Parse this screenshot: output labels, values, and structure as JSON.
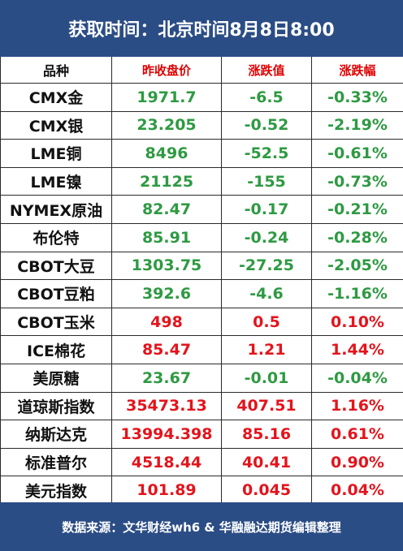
{
  "title": "获取时间：北京时间8月8日8:00",
  "columns": {
    "name": "品种",
    "prev_close": "昨收盘价",
    "change": "涨跌值",
    "change_pct": "涨跌幅"
  },
  "colors": {
    "header_bg": "#2b4d85",
    "up": "#e3141c",
    "down": "#2e9a42"
  },
  "rows": [
    {
      "name": "CMX金",
      "prev_close": "1971.7",
      "change": "-6.5",
      "change_pct": "-0.33%",
      "dir": "down"
    },
    {
      "name": "CMX银",
      "prev_close": "23.205",
      "change": "-0.52",
      "change_pct": "-2.19%",
      "dir": "down"
    },
    {
      "name": "LME铜",
      "prev_close": "8496",
      "change": "-52.5",
      "change_pct": "-0.61%",
      "dir": "down"
    },
    {
      "name": "LME镍",
      "prev_close": "21125",
      "change": "-155",
      "change_pct": "-0.73%",
      "dir": "down"
    },
    {
      "name": "NYMEX原油",
      "prev_close": "82.47",
      "change": "-0.17",
      "change_pct": "-0.21%",
      "dir": "down"
    },
    {
      "name": "布伦特",
      "prev_close": "85.91",
      "change": "-0.24",
      "change_pct": "-0.28%",
      "dir": "down"
    },
    {
      "name": "CBOT大豆",
      "prev_close": "1303.75",
      "change": "-27.25",
      "change_pct": "-2.05%",
      "dir": "down"
    },
    {
      "name": "CBOT豆粕",
      "prev_close": "392.6",
      "change": "-4.6",
      "change_pct": "-1.16%",
      "dir": "down"
    },
    {
      "name": "CBOT玉米",
      "prev_close": "498",
      "change": "0.5",
      "change_pct": "0.10%",
      "dir": "up"
    },
    {
      "name": "ICE棉花",
      "prev_close": "85.47",
      "change": "1.21",
      "change_pct": "1.44%",
      "dir": "up"
    },
    {
      "name": "美原糖",
      "prev_close": "23.67",
      "change": "-0.01",
      "change_pct": "-0.04%",
      "dir": "down"
    },
    {
      "name": "道琼斯指数",
      "prev_close": "35473.13",
      "change": "407.51",
      "change_pct": "1.16%",
      "dir": "up"
    },
    {
      "name": "纳斯达克",
      "prev_close": "13994.398",
      "change": "85.16",
      "change_pct": "0.61%",
      "dir": "up"
    },
    {
      "name": "标准普尔",
      "prev_close": "4518.44",
      "change": "40.41",
      "change_pct": "0.90%",
      "dir": "up"
    },
    {
      "name": "美元指数",
      "prev_close": "101.89",
      "change": "0.045",
      "change_pct": "0.04%",
      "dir": "up"
    }
  ],
  "footer": "数据来源：文华财经wh6 & 华融融达期货编辑整理"
}
